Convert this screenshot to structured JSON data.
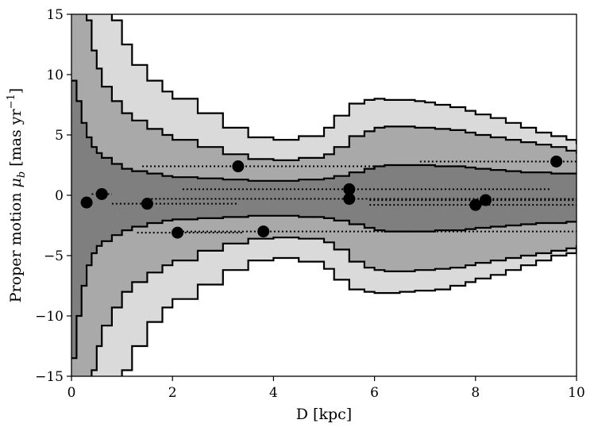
{
  "chart_data": {
    "type": "scatter",
    "title": "",
    "xlabel": "D [kpc]",
    "ylabel": "Proper motion μ_b [mas yr^-1]",
    "ylabel_parts": {
      "main": "Proper motion ",
      "sym": "μ",
      "sub": "b",
      "bracket_open": " [mas yr",
      "sup": "−1",
      "bracket_close": "]"
    },
    "xlim": [
      0,
      10
    ],
    "ylim": [
      -15,
      15
    ],
    "xticks": [
      0,
      2,
      4,
      6,
      8,
      10
    ],
    "xtick_labels": [
      "0",
      "2",
      "4",
      "6",
      "8",
      "10"
    ],
    "yticks": [
      -15,
      -10,
      -5,
      0,
      5,
      10,
      15
    ],
    "ytick_labels": [
      "−15",
      "−10",
      "−5",
      "0",
      "5",
      "10",
      "15"
    ],
    "grid": false,
    "legend": "none",
    "bands": {
      "colors": [
        "#7f7f7f",
        "#a9a9a9",
        "#dadada"
      ],
      "edge_color": "#000000",
      "upper_edges": {
        "x": [
          0,
          0.1,
          0.2,
          0.3,
          0.4,
          0.5,
          0.6,
          0.8,
          1.0,
          1.2,
          1.5,
          1.8,
          2.0,
          2.5,
          3.0,
          3.5,
          4.0,
          4.5,
          5.0,
          5.2,
          5.5,
          5.8,
          6.0,
          6.2,
          6.5,
          6.8,
          7.0,
          7.2,
          7.5,
          7.8,
          8.0,
          8.3,
          8.6,
          8.9,
          9.2,
          9.5,
          9.8,
          10.0
        ],
        "b1": [
          9.5,
          7.8,
          6.0,
          4.8,
          4.0,
          3.5,
          3.1,
          2.6,
          2.2,
          2.0,
          1.8,
          1.6,
          1.5,
          1.4,
          1.3,
          1.2,
          1.2,
          1.3,
          1.4,
          1.6,
          1.9,
          2.2,
          2.4,
          2.5,
          2.5,
          2.5,
          2.5,
          2.4,
          2.4,
          2.3,
          2.2,
          2.1,
          2.0,
          1.9,
          1.9,
          1.8,
          1.8,
          1.8
        ],
        "b2": [
          15.5,
          15.5,
          15.5,
          14.5,
          12.0,
          10.5,
          9.0,
          7.8,
          6.8,
          6.2,
          5.5,
          5.0,
          4.6,
          4.0,
          3.4,
          3.0,
          2.9,
          3.1,
          3.4,
          4.0,
          4.9,
          5.3,
          5.6,
          5.7,
          5.7,
          5.6,
          5.6,
          5.5,
          5.4,
          5.2,
          5.0,
          4.8,
          4.6,
          4.4,
          4.2,
          4.0,
          3.7,
          3.5
        ],
        "b3": [
          15.5,
          15.5,
          15.5,
          15.5,
          15.5,
          15.5,
          15.5,
          14.5,
          12.5,
          10.8,
          9.5,
          8.6,
          8.0,
          6.8,
          5.6,
          4.8,
          4.6,
          4.9,
          5.6,
          6.6,
          7.6,
          7.9,
          8.0,
          7.9,
          7.9,
          7.8,
          7.7,
          7.5,
          7.3,
          7.0,
          6.7,
          6.4,
          6.0,
          5.6,
          5.2,
          4.9,
          4.6,
          4.3
        ]
      },
      "lower_edges": {
        "x": [
          0,
          0.1,
          0.2,
          0.3,
          0.4,
          0.5,
          0.6,
          0.8,
          1.0,
          1.2,
          1.5,
          1.8,
          2.0,
          2.5,
          3.0,
          3.5,
          4.0,
          4.5,
          5.0,
          5.2,
          5.5,
          5.8,
          6.0,
          6.2,
          6.5,
          6.8,
          7.0,
          7.2,
          7.5,
          7.8,
          8.0,
          8.3,
          8.6,
          8.9,
          9.2,
          9.5,
          9.8,
          10.0
        ],
        "b1": [
          -13.5,
          -10.0,
          -7.5,
          -5.8,
          -4.8,
          -4.2,
          -3.8,
          -3.3,
          -2.9,
          -2.6,
          -2.3,
          -2.1,
          -2.0,
          -1.9,
          -1.8,
          -1.7,
          -1.7,
          -1.8,
          -1.9,
          -2.1,
          -2.4,
          -2.7,
          -2.9,
          -3.0,
          -3.0,
          -3.0,
          -3.0,
          -2.9,
          -2.9,
          -2.8,
          -2.7,
          -2.6,
          -2.5,
          -2.4,
          -2.3,
          -2.3,
          -2.2,
          -2.2
        ],
        "b2": [
          -15.5,
          -15.5,
          -15.5,
          -15.5,
          -14.5,
          -12.5,
          -10.8,
          -9.3,
          -8.0,
          -7.2,
          -6.4,
          -5.8,
          -5.4,
          -4.6,
          -4.0,
          -3.6,
          -3.5,
          -3.6,
          -3.9,
          -4.5,
          -5.5,
          -6.0,
          -6.2,
          -6.3,
          -6.3,
          -6.2,
          -6.2,
          -6.1,
          -6.0,
          -5.8,
          -5.6,
          -5.4,
          -5.2,
          -5.0,
          -4.8,
          -4.6,
          -4.4,
          -4.2
        ],
        "b3": [
          -15.5,
          -15.5,
          -15.5,
          -15.5,
          -15.5,
          -15.5,
          -15.5,
          -15.5,
          -14.5,
          -12.5,
          -10.5,
          -9.3,
          -8.6,
          -7.4,
          -6.2,
          -5.4,
          -5.2,
          -5.5,
          -6.1,
          -7.0,
          -7.8,
          -8.0,
          -8.1,
          -8.1,
          -8.0,
          -7.9,
          -7.9,
          -7.8,
          -7.5,
          -7.2,
          -6.9,
          -6.6,
          -6.2,
          -5.8,
          -5.4,
          -5.0,
          -4.8,
          -4.5
        ]
      }
    },
    "points": [
      {
        "x": 0.3,
        "y": -0.6,
        "xerr_lo": 0.1,
        "xerr_hi": 0.1
      },
      {
        "x": 0.6,
        "y": 0.1,
        "xerr_lo": 0.2,
        "xerr_hi": 0.2
      },
      {
        "x": 1.5,
        "y": -0.7,
        "xerr_lo": 0.7,
        "xerr_hi": 1.8
      },
      {
        "x": 2.1,
        "y": -3.1,
        "xerr_lo": 0.8,
        "xerr_hi": 1.3
      },
      {
        "x": 3.3,
        "y": 2.4,
        "xerr_lo": 1.9,
        "xerr_hi": 2.8
      },
      {
        "x": 3.8,
        "y": -3.0,
        "xerr_lo": 1.6,
        "xerr_hi": 6.2
      },
      {
        "x": 5.5,
        "y": 0.5,
        "xerr_lo": 3.3,
        "xerr_hi": 4.0
      },
      {
        "x": 5.5,
        "y": -0.3,
        "xerr_lo": 4.0,
        "xerr_hi": 4.5
      },
      {
        "x": 8.0,
        "y": -0.8,
        "xerr_lo": 2.1,
        "xerr_hi": 2.0
      },
      {
        "x": 8.2,
        "y": -0.4,
        "xerr_lo": 2.3,
        "xerr_hi": 1.8
      },
      {
        "x": 9.6,
        "y": 2.8,
        "xerr_lo": 2.7,
        "xerr_hi": 0.4
      }
    ],
    "marker_color": "#000000"
  }
}
